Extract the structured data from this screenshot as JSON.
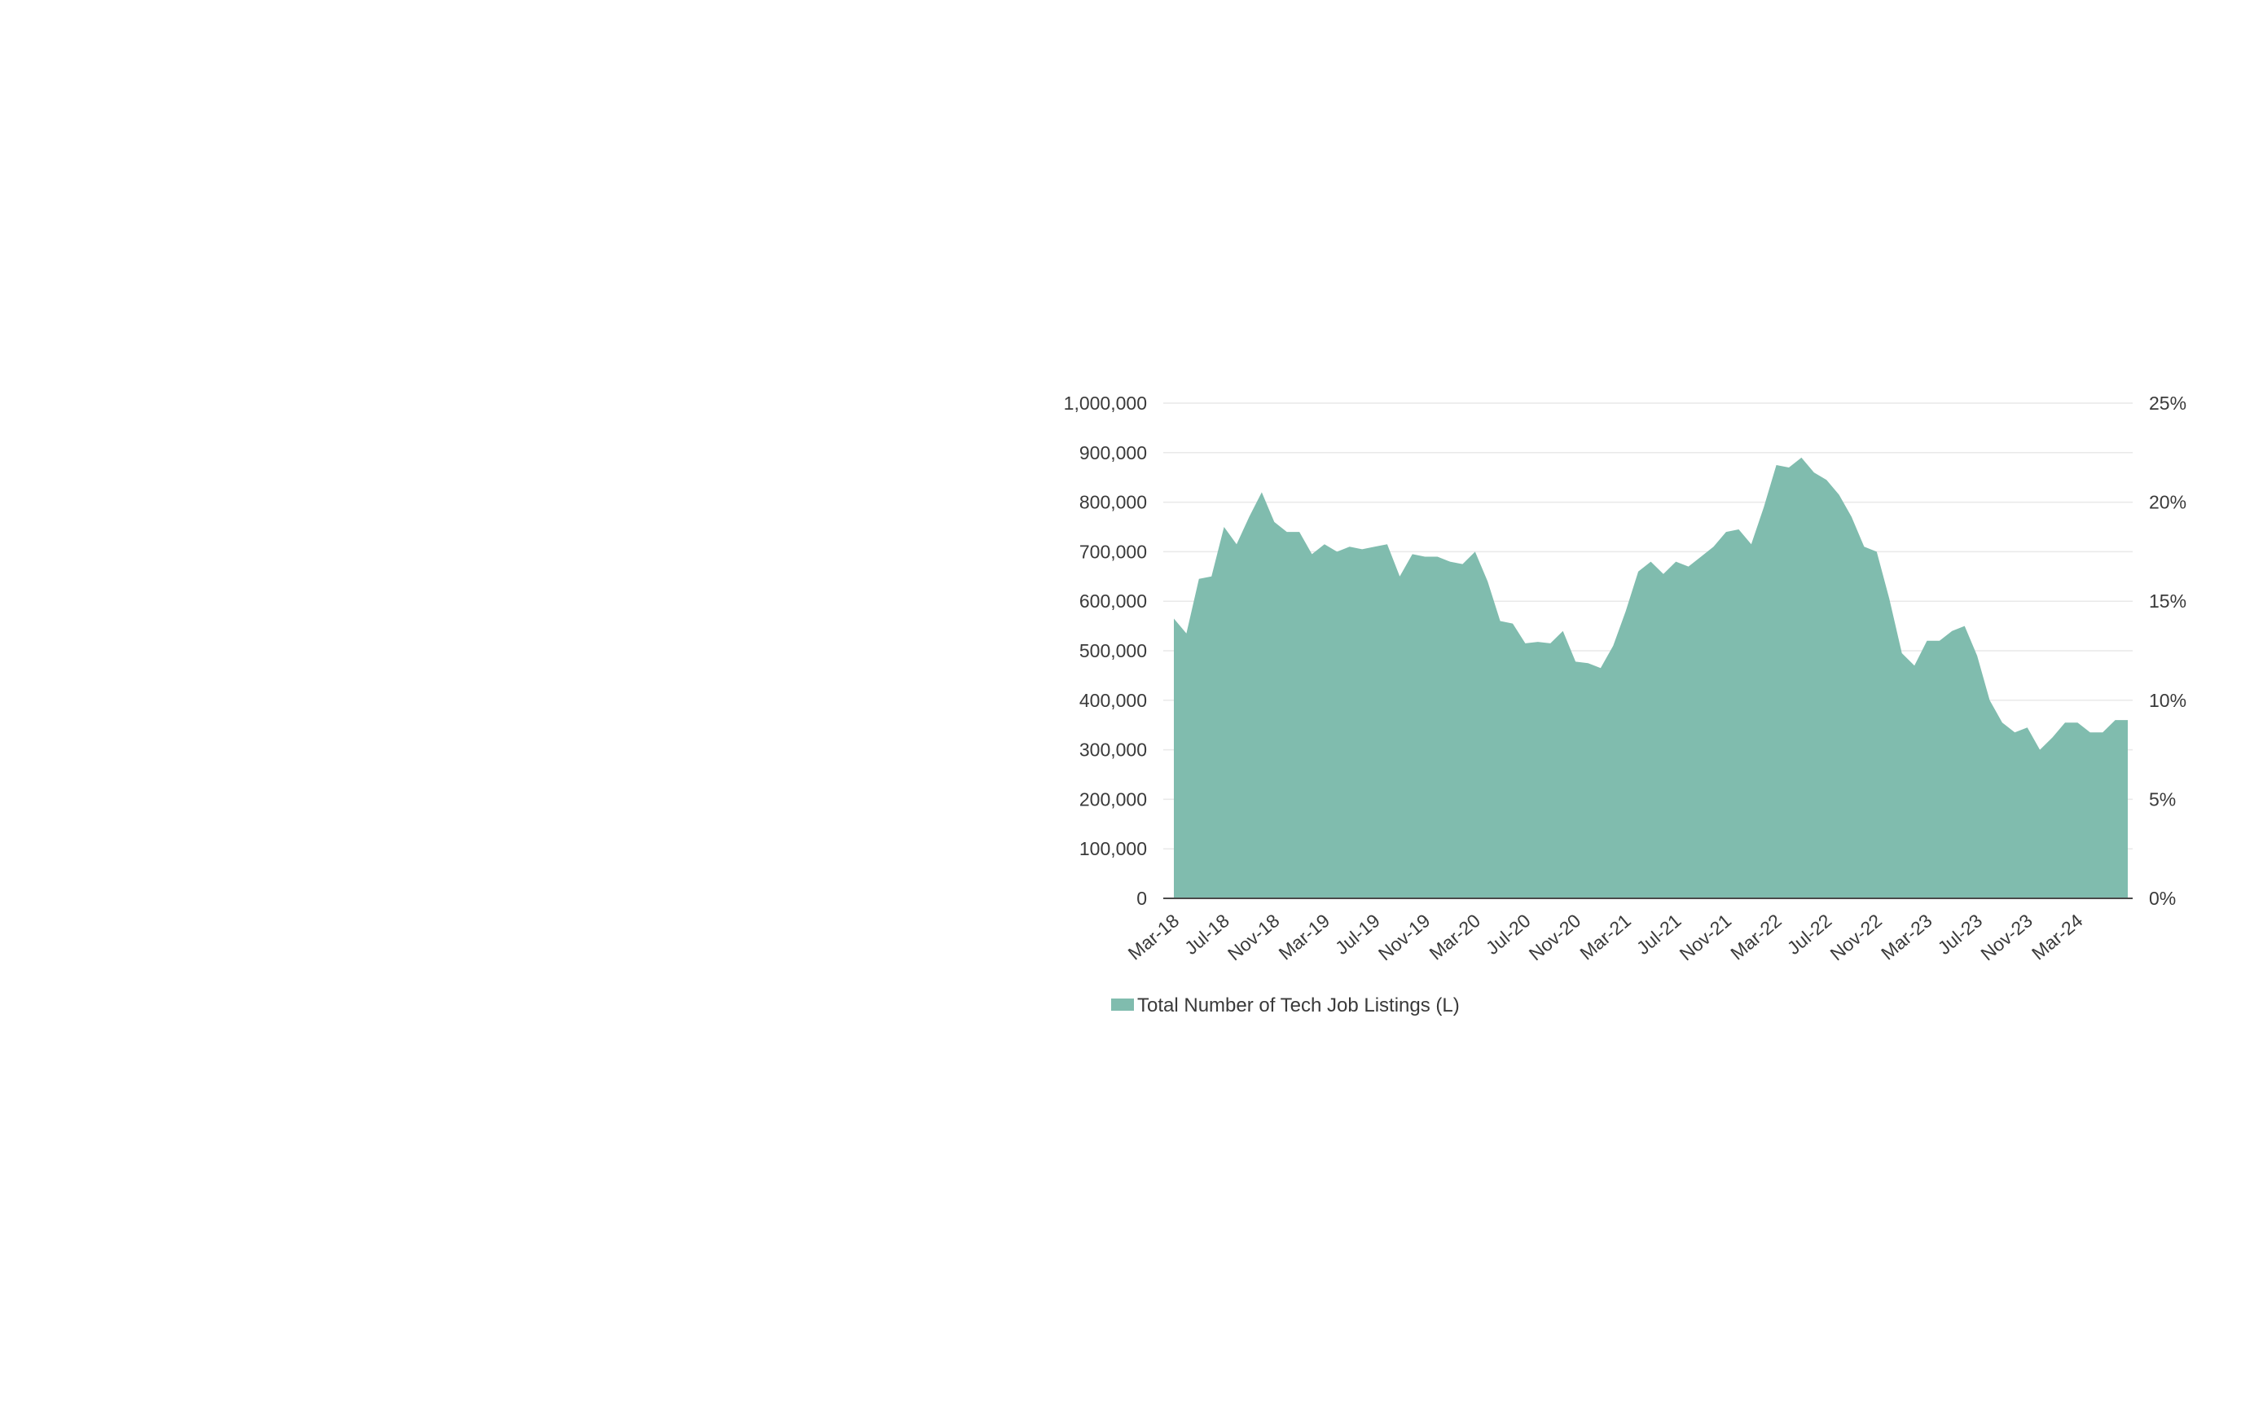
{
  "chart_data": {
    "type": "area",
    "color": "#80BCAE",
    "x_start": "Mar-18",
    "x_tick_labels": [
      "Mar-18",
      "Jul-18",
      "Nov-18",
      "Mar-19",
      "Jul-19",
      "Nov-19",
      "Mar-20",
      "Jul-20",
      "Nov-20",
      "Mar-21",
      "Jul-21",
      "Nov-21",
      "Mar-22",
      "Jul-22",
      "Nov-22",
      "Mar-23",
      "Jul-23",
      "Nov-23",
      "Mar-24"
    ],
    "y_left_ticks": [
      "0",
      "100,000",
      "200,000",
      "300,000",
      "400,000",
      "500,000",
      "600,000",
      "700,000",
      "800,000",
      "900,000",
      "1,000,000"
    ],
    "y_right_ticks": [
      "0%",
      "5%",
      "10%",
      "15%",
      "20%",
      "25%"
    ],
    "ylim_left": [
      0,
      1000000
    ],
    "ylim_right": [
      0,
      25
    ],
    "grid": true,
    "legend_position": "bottom-left",
    "series": [
      {
        "name": "Total Number of Tech Job Listings (L)",
        "x": [
          "Mar-18",
          "Apr-18",
          "May-18",
          "Jun-18",
          "Jul-18",
          "Aug-18",
          "Sep-18",
          "Oct-18",
          "Nov-18",
          "Dec-18",
          "Jan-19",
          "Feb-19",
          "Mar-19",
          "Apr-19",
          "May-19",
          "Jun-19",
          "Jul-19",
          "Aug-19",
          "Sep-19",
          "Oct-19",
          "Nov-19",
          "Dec-19",
          "Jan-20",
          "Feb-20",
          "Mar-20",
          "Apr-20",
          "May-20",
          "Jun-20",
          "Jul-20",
          "Aug-20",
          "Sep-20",
          "Oct-20",
          "Nov-20",
          "Dec-20",
          "Jan-21",
          "Feb-21",
          "Mar-21",
          "Apr-21",
          "May-21",
          "Jun-21",
          "Jul-21",
          "Aug-21",
          "Sep-21",
          "Oct-21",
          "Nov-21",
          "Dec-21",
          "Jan-22",
          "Feb-22",
          "Mar-22",
          "Apr-22",
          "May-22",
          "Jun-22",
          "Jul-22",
          "Aug-22",
          "Sep-22",
          "Oct-22",
          "Nov-22",
          "Dec-22",
          "Jan-23",
          "Feb-23",
          "Mar-23",
          "Apr-23",
          "May-23",
          "Jun-23",
          "Jul-23",
          "Aug-23",
          "Sep-23",
          "Oct-23",
          "Nov-23",
          "Dec-23",
          "Jan-24",
          "Feb-24",
          "Mar-24",
          "Apr-24",
          "May-24",
          "Jun-24",
          "Jul-24"
        ],
        "values": [
          565000,
          535000,
          645000,
          650000,
          750000,
          715000,
          770000,
          820000,
          760000,
          740000,
          740000,
          695000,
          715000,
          700000,
          710000,
          705000,
          710000,
          715000,
          650000,
          695000,
          690000,
          690000,
          680000,
          675000,
          700000,
          640000,
          560000,
          555000,
          515000,
          518000,
          515000,
          540000,
          478000,
          475000,
          465000,
          510000,
          580000,
          660000,
          680000,
          655000,
          680000,
          670000,
          690000,
          710000,
          740000,
          745000,
          715000,
          790000,
          875000,
          870000,
          890000,
          860000,
          845000,
          815000,
          770000,
          710000,
          700000,
          605000,
          495000,
          470000,
          520000,
          520000,
          540000,
          550000,
          490000,
          400000,
          355000,
          335000,
          345000,
          300000,
          325000,
          355000,
          355000,
          335000,
          335000,
          360000,
          360000
        ]
      }
    ]
  }
}
